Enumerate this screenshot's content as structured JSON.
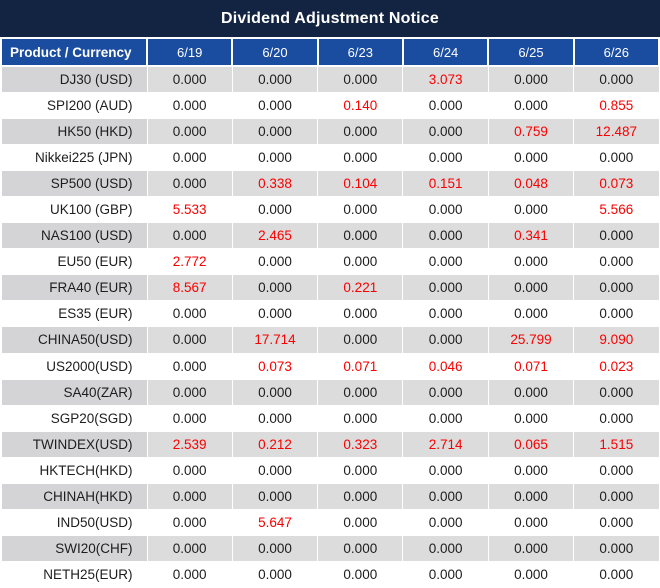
{
  "title_bar": {
    "title": "Dividend Adjustment Notice"
  },
  "colors": {
    "title_bar_bg": "#132442",
    "header_bg": "#1a4c9f",
    "alt_row_bg": "#dcdcdc",
    "alt_label_bg": "#d4d4d6",
    "zero_value_text": "#1d1d1d",
    "nonzero_value_text": "#fa0000",
    "header_text": "#ffffff"
  },
  "chart_data": {
    "type": "table",
    "title": "Dividend Adjustment Notice",
    "columns": [
      "Product / Currency",
      "6/19",
      "6/20",
      "6/23",
      "6/24",
      "6/25",
      "6/26"
    ],
    "rows": [
      {
        "product": "DJ30 (USD)",
        "values": [
          "0.000",
          "0.000",
          "0.000",
          "3.073",
          "0.000",
          "0.000"
        ]
      },
      {
        "product": "SPI200 (AUD)",
        "values": [
          "0.000",
          "0.000",
          "0.140",
          "0.000",
          "0.000",
          "0.855"
        ]
      },
      {
        "product": "HK50 (HKD)",
        "values": [
          "0.000",
          "0.000",
          "0.000",
          "0.000",
          "0.759",
          "12.487"
        ]
      },
      {
        "product": "Nikkei225 (JPN)",
        "values": [
          "0.000",
          "0.000",
          "0.000",
          "0.000",
          "0.000",
          "0.000"
        ]
      },
      {
        "product": "SP500 (USD)",
        "values": [
          "0.000",
          "0.338",
          "0.104",
          "0.151",
          "0.048",
          "0.073"
        ]
      },
      {
        "product": "UK100 (GBP)",
        "values": [
          "5.533",
          "0.000",
          "0.000",
          "0.000",
          "0.000",
          "5.566"
        ]
      },
      {
        "product": "NAS100 (USD)",
        "values": [
          "0.000",
          "2.465",
          "0.000",
          "0.000",
          "0.341",
          "0.000"
        ]
      },
      {
        "product": "EU50 (EUR)",
        "values": [
          "2.772",
          "0.000",
          "0.000",
          "0.000",
          "0.000",
          "0.000"
        ]
      },
      {
        "product": "FRA40 (EUR)",
        "values": [
          "8.567",
          "0.000",
          "0.221",
          "0.000",
          "0.000",
          "0.000"
        ]
      },
      {
        "product": "ES35 (EUR)",
        "values": [
          "0.000",
          "0.000",
          "0.000",
          "0.000",
          "0.000",
          "0.000"
        ]
      },
      {
        "product": "CHINA50(USD)",
        "values": [
          "0.000",
          "17.714",
          "0.000",
          "0.000",
          "25.799",
          "9.090"
        ]
      },
      {
        "product": "US2000(USD)",
        "values": [
          "0.000",
          "0.073",
          "0.071",
          "0.046",
          "0.071",
          "0.023"
        ]
      },
      {
        "product": "SA40(ZAR)",
        "values": [
          "0.000",
          "0.000",
          "0.000",
          "0.000",
          "0.000",
          "0.000"
        ]
      },
      {
        "product": "SGP20(SGD)",
        "values": [
          "0.000",
          "0.000",
          "0.000",
          "0.000",
          "0.000",
          "0.000"
        ]
      },
      {
        "product": "TWINDEX(USD)",
        "values": [
          "2.539",
          "0.212",
          "0.323",
          "2.714",
          "0.065",
          "1.515"
        ]
      },
      {
        "product": "HKTECH(HKD)",
        "values": [
          "0.000",
          "0.000",
          "0.000",
          "0.000",
          "0.000",
          "0.000"
        ]
      },
      {
        "product": "CHINAH(HKD)",
        "values": [
          "0.000",
          "0.000",
          "0.000",
          "0.000",
          "0.000",
          "0.000"
        ]
      },
      {
        "product": "IND50(USD)",
        "values": [
          "0.000",
          "5.647",
          "0.000",
          "0.000",
          "0.000",
          "0.000"
        ]
      },
      {
        "product": "SWI20(CHF)",
        "values": [
          "0.000",
          "0.000",
          "0.000",
          "0.000",
          "0.000",
          "0.000"
        ]
      },
      {
        "product": "NETH25(EUR)",
        "values": [
          "0.000",
          "0.000",
          "0.000",
          "0.000",
          "0.000",
          "0.000"
        ]
      }
    ]
  }
}
